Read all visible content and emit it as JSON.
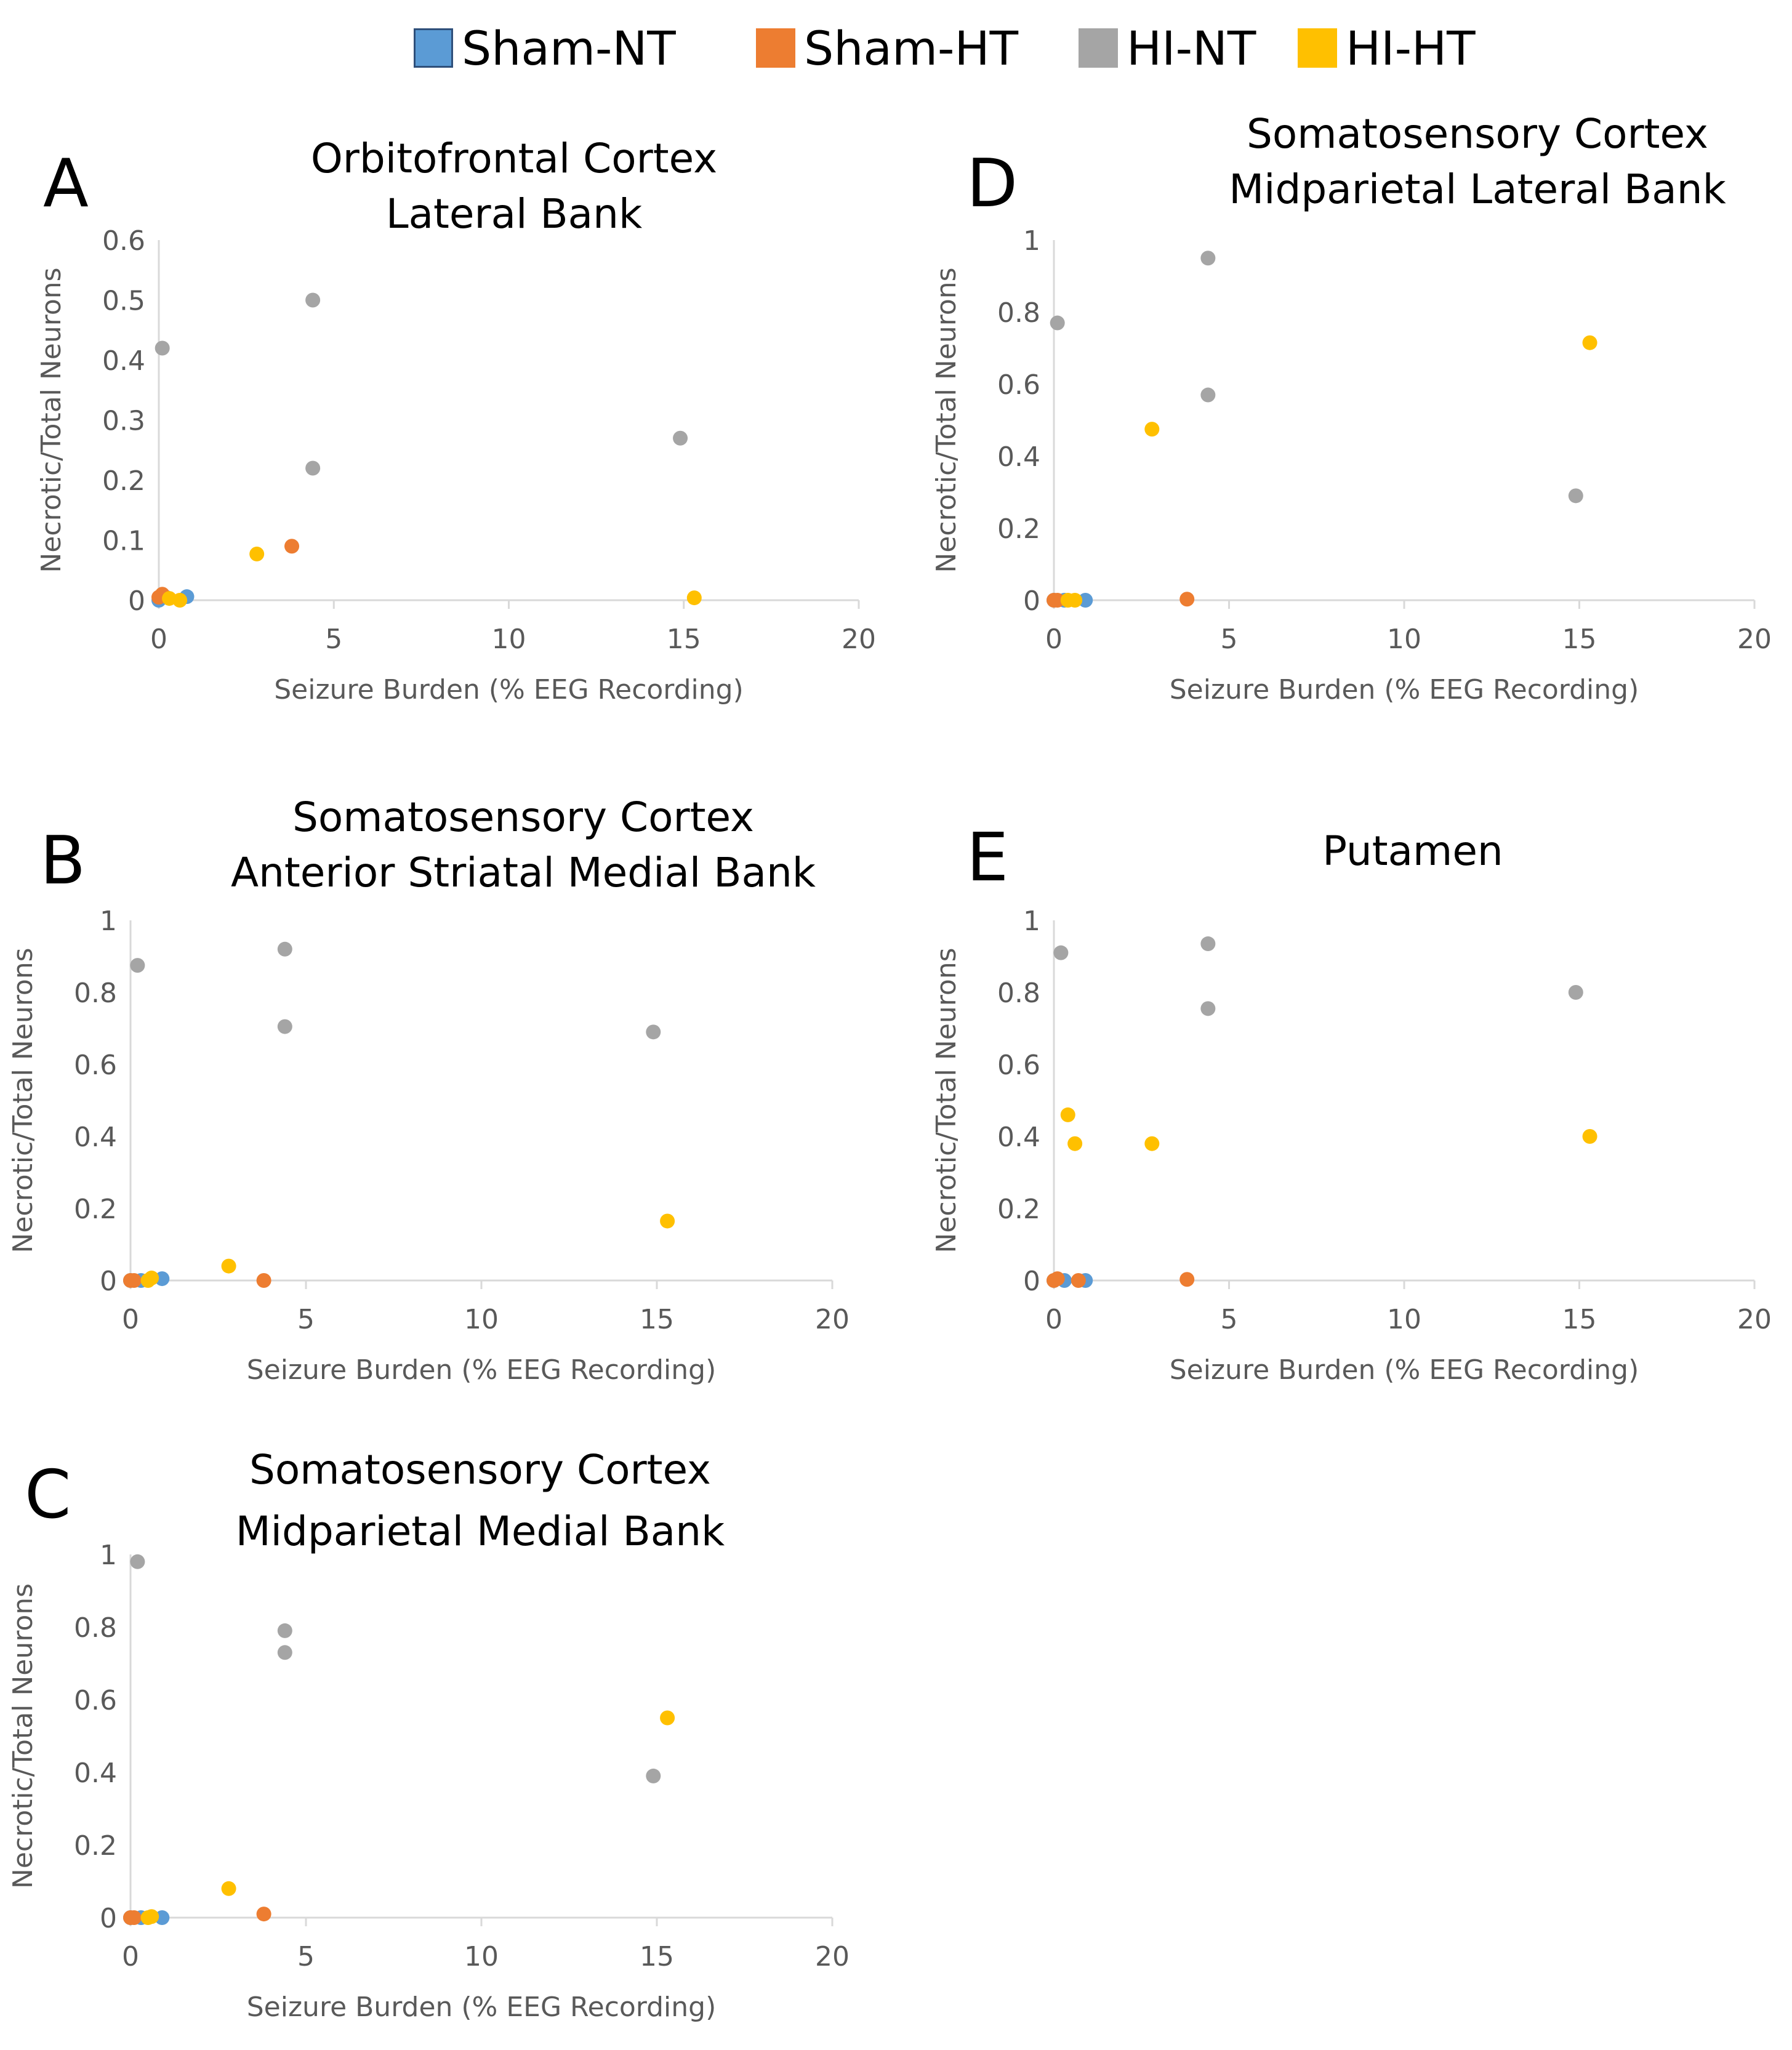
{
  "legend": {
    "items": [
      {
        "label": "Sham-NT",
        "color": "#5b9bd5"
      },
      {
        "label": "Sham-HT",
        "color": "#ed7d31"
      },
      {
        "label": "HI-NT",
        "color": "#a5a5a5"
      },
      {
        "label": "HI-HT",
        "color": "#ffc000"
      }
    ]
  },
  "colors": {
    "Sham-NT": "#5b9bd5",
    "Sham-HT": "#ed7d31",
    "HI-NT": "#a5a5a5",
    "HI-HT": "#ffc000"
  },
  "chart_data": [
    {
      "panel": "A",
      "type": "scatter",
      "title": [
        "Orbitofrontal Cortex",
        "Lateral Bank"
      ],
      "xlabel": "Seizure Burden (% EEG Recording)",
      "ylabel": "Necrotic/Total Neurons",
      "xlim": [
        0,
        20
      ],
      "ylim": [
        0,
        0.6
      ],
      "xticks": [
        "0",
        "5",
        "10",
        "15",
        "20"
      ],
      "yticks": [
        "0",
        "0.1",
        "0.2",
        "0.3",
        "0.4",
        "0.5",
        "0.6"
      ],
      "grid": false,
      "series": [
        {
          "name": "Sham-NT",
          "points": [
            [
              0.0,
              0.0
            ],
            [
              0.2,
              0.005
            ],
            [
              0.8,
              0.006
            ]
          ]
        },
        {
          "name": "Sham-HT",
          "points": [
            [
              0.0,
              0.005
            ],
            [
              0.1,
              0.01
            ],
            [
              3.8,
              0.09
            ]
          ]
        },
        {
          "name": "HI-NT",
          "points": [
            [
              0.1,
              0.42
            ],
            [
              4.4,
              0.5
            ],
            [
              4.4,
              0.22
            ],
            [
              14.9,
              0.27
            ]
          ]
        },
        {
          "name": "HI-HT",
          "points": [
            [
              0.3,
              0.003
            ],
            [
              0.6,
              0.0
            ],
            [
              2.8,
              0.077
            ],
            [
              15.3,
              0.004
            ]
          ]
        }
      ]
    },
    {
      "panel": "B",
      "type": "scatter",
      "title": [
        "Somatosensory Cortex",
        "Anterior Striatal Medial Bank"
      ],
      "xlabel": "Seizure Burden (% EEG Recording)",
      "ylabel": "Necrotic/Total Neurons",
      "xlim": [
        0,
        20
      ],
      "ylim": [
        0,
        1
      ],
      "xticks": [
        "0",
        "5",
        "10",
        "15",
        "20"
      ],
      "yticks": [
        "0",
        "0.2",
        "0.4",
        "0.6",
        "0.8",
        "1"
      ],
      "grid": false,
      "series": [
        {
          "name": "Sham-NT",
          "points": [
            [
              0.0,
              0.0
            ],
            [
              0.3,
              0.0
            ],
            [
              0.9,
              0.005
            ]
          ]
        },
        {
          "name": "Sham-HT",
          "points": [
            [
              0.0,
              0.0
            ],
            [
              0.1,
              0.0
            ],
            [
              3.8,
              0.0
            ]
          ]
        },
        {
          "name": "HI-NT",
          "points": [
            [
              0.2,
              0.875
            ],
            [
              4.4,
              0.92
            ],
            [
              4.4,
              0.705
            ],
            [
              14.9,
              0.69
            ]
          ]
        },
        {
          "name": "HI-HT",
          "points": [
            [
              0.5,
              0.0
            ],
            [
              0.6,
              0.007
            ],
            [
              2.8,
              0.04
            ],
            [
              15.3,
              0.165
            ]
          ]
        }
      ]
    },
    {
      "panel": "C",
      "type": "scatter",
      "title": [
        "Somatosensory Cortex",
        "Midparietal Medial Bank"
      ],
      "xlabel": "Seizure Burden (% EEG Recording)",
      "ylabel": "Necrotic/Total Neurons",
      "xlim": [
        0,
        20
      ],
      "ylim": [
        0,
        1
      ],
      "xticks": [
        "0",
        "5",
        "10",
        "15",
        "20"
      ],
      "yticks": [
        "0",
        "0.2",
        "0.4",
        "0.6",
        "0.8",
        "1"
      ],
      "grid": false,
      "series": [
        {
          "name": "Sham-NT",
          "points": [
            [
              0.0,
              0.0
            ],
            [
              0.3,
              0.0
            ],
            [
              0.9,
              0.0
            ]
          ]
        },
        {
          "name": "Sham-HT",
          "points": [
            [
              0.0,
              0.0
            ],
            [
              0.1,
              0.0
            ],
            [
              3.8,
              0.01
            ]
          ]
        },
        {
          "name": "HI-NT",
          "points": [
            [
              0.2,
              0.98
            ],
            [
              4.4,
              0.79
            ],
            [
              4.4,
              0.73
            ],
            [
              14.9,
              0.39
            ]
          ]
        },
        {
          "name": "HI-HT",
          "points": [
            [
              0.5,
              0.0
            ],
            [
              0.6,
              0.003
            ],
            [
              2.8,
              0.08
            ],
            [
              15.3,
              0.55
            ]
          ]
        }
      ]
    },
    {
      "panel": "D",
      "type": "scatter",
      "title": [
        "Somatosensory Cortex",
        "Midparietal Lateral Bank"
      ],
      "xlabel": "Seizure Burden (% EEG Recording)",
      "ylabel": "Necrotic/Total Neurons",
      "xlim": [
        0,
        20
      ],
      "ylim": [
        0,
        1
      ],
      "xticks": [
        "0",
        "5",
        "10",
        "15",
        "20"
      ],
      "yticks": [
        "0",
        "0.2",
        "0.4",
        "0.6",
        "0.8",
        "1"
      ],
      "grid": false,
      "series": [
        {
          "name": "Sham-NT",
          "points": [
            [
              0.0,
              0.0
            ],
            [
              0.3,
              0.0
            ],
            [
              0.9,
              0.0
            ]
          ]
        },
        {
          "name": "Sham-HT",
          "points": [
            [
              0.0,
              0.0
            ],
            [
              0.1,
              0.0
            ],
            [
              3.8,
              0.003
            ]
          ]
        },
        {
          "name": "HI-NT",
          "points": [
            [
              0.1,
              0.77
            ],
            [
              4.4,
              0.95
            ],
            [
              4.4,
              0.57
            ],
            [
              14.9,
              0.29
            ]
          ]
        },
        {
          "name": "HI-HT",
          "points": [
            [
              0.4,
              0.0
            ],
            [
              0.6,
              0.0
            ],
            [
              2.8,
              0.475
            ],
            [
              15.3,
              0.715
            ]
          ]
        }
      ]
    },
    {
      "panel": "E",
      "type": "scatter",
      "title": [
        "Putamen"
      ],
      "xlabel": "Seizure Burden (% EEG Recording)",
      "ylabel": "Necrotic/Total Neurons",
      "xlim": [
        0,
        20
      ],
      "ylim": [
        0,
        1
      ],
      "xticks": [
        "0",
        "5",
        "10",
        "15",
        "20"
      ],
      "yticks": [
        "0",
        "0.2",
        "0.4",
        "0.6",
        "0.8",
        "1"
      ],
      "grid": false,
      "series": [
        {
          "name": "Sham-NT",
          "points": [
            [
              0.0,
              0.0
            ],
            [
              0.3,
              0.0
            ],
            [
              0.9,
              0.0
            ]
          ]
        },
        {
          "name": "Sham-HT",
          "points": [
            [
              0.0,
              0.0
            ],
            [
              0.1,
              0.005
            ],
            [
              0.7,
              0.0
            ],
            [
              3.8,
              0.003
            ]
          ]
        },
        {
          "name": "HI-NT",
          "points": [
            [
              0.2,
              0.91
            ],
            [
              4.4,
              0.935
            ],
            [
              4.4,
              0.755
            ],
            [
              14.9,
              0.8
            ]
          ]
        },
        {
          "name": "HI-HT",
          "points": [
            [
              0.4,
              0.46
            ],
            [
              0.6,
              0.38
            ],
            [
              2.8,
              0.38
            ],
            [
              15.3,
              0.4
            ]
          ]
        }
      ]
    }
  ]
}
